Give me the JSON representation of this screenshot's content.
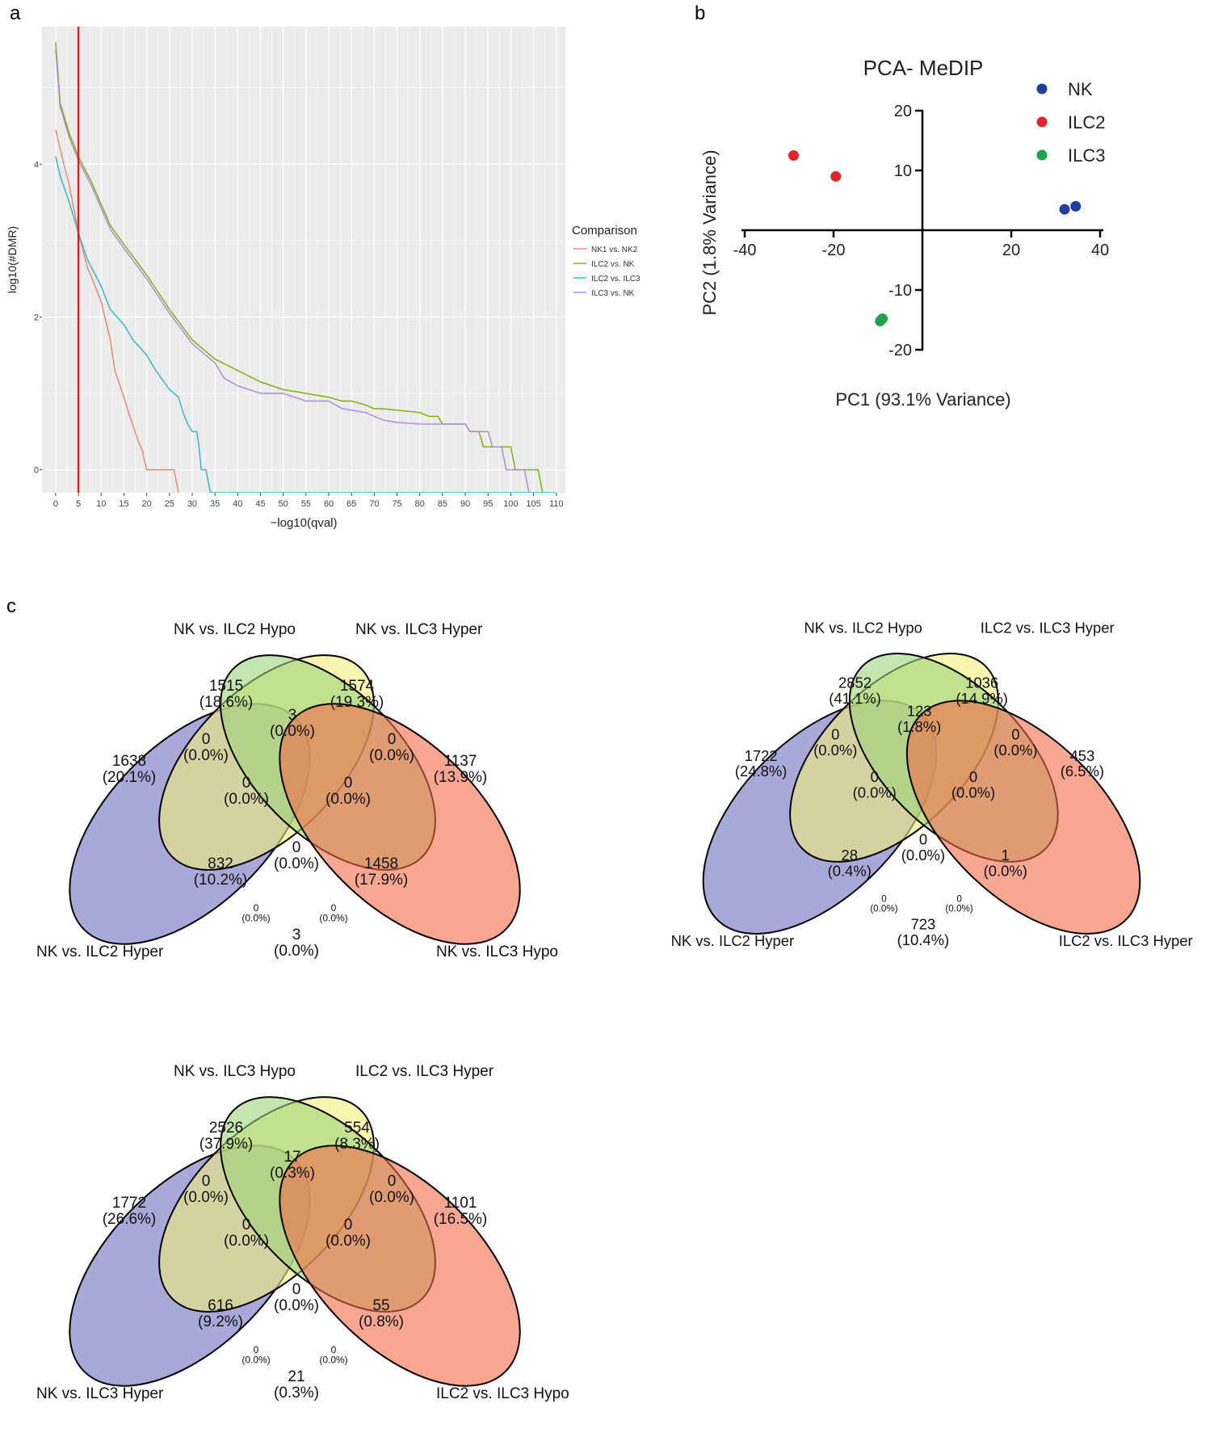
{
  "panel_labels": {
    "a": "a",
    "b": "b",
    "c": "c"
  },
  "chart_data": [
    {
      "type": "line",
      "panel": "a",
      "title": "",
      "xlabel": "−log10(qval)",
      "ylabel": "log10(#DMR)",
      "xlim": [
        -3,
        112
      ],
      "ylim": [
        -0.3,
        5.8
      ],
      "xticks": [
        0,
        5,
        10,
        15,
        20,
        25,
        30,
        35,
        40,
        45,
        50,
        55,
        60,
        65,
        70,
        75,
        80,
        85,
        90,
        95,
        100,
        105,
        110
      ],
      "yticks": [
        0,
        2,
        4
      ],
      "grid": true,
      "background": "#ebebeb",
      "vline": {
        "x": 5,
        "color": "#e41a1c"
      },
      "legend": {
        "title": "Comparison",
        "placement": "right"
      },
      "series": [
        {
          "name": "NK1 vs. NK2",
          "color": "#f08070",
          "points": [
            [
              0,
              4.45
            ],
            [
              1,
              4.2
            ],
            [
              2,
              3.95
            ],
            [
              3,
              3.72
            ],
            [
              5,
              3.1
            ],
            [
              7,
              2.65
            ],
            [
              10,
              2.2
            ],
            [
              12,
              1.7
            ],
            [
              13,
              1.3
            ],
            [
              15,
              0.95
            ],
            [
              16,
              0.75
            ],
            [
              18,
              0.4
            ],
            [
              19,
              0.25
            ],
            [
              20,
              0.0
            ],
            [
              22,
              0.0
            ],
            [
              25,
              0.0
            ],
            [
              26,
              0.0
            ],
            [
              27,
              -0.3
            ]
          ]
        },
        {
          "name": "ILC2 vs. NK",
          "color": "#7cae00",
          "points": [
            [
              0,
              5.6
            ],
            [
              1,
              4.8
            ],
            [
              3,
              4.4
            ],
            [
              5,
              4.1
            ],
            [
              8,
              3.75
            ],
            [
              12,
              3.2
            ],
            [
              15,
              2.95
            ],
            [
              20,
              2.55
            ],
            [
              25,
              2.1
            ],
            [
              30,
              1.7
            ],
            [
              35,
              1.45
            ],
            [
              40,
              1.3
            ],
            [
              45,
              1.15
            ],
            [
              50,
              1.05
            ],
            [
              55,
              1.0
            ],
            [
              60,
              0.95
            ],
            [
              63,
              0.9
            ],
            [
              65,
              0.9
            ],
            [
              68,
              0.85
            ],
            [
              70,
              0.8
            ],
            [
              72,
              0.8
            ],
            [
              75,
              0.78
            ],
            [
              80,
              0.75
            ],
            [
              82,
              0.7
            ],
            [
              84,
              0.7
            ],
            [
              85,
              0.6
            ],
            [
              90,
              0.6
            ],
            [
              91,
              0.5
            ],
            [
              93,
              0.5
            ],
            [
              94,
              0.3
            ],
            [
              100,
              0.3
            ],
            [
              101,
              0.0
            ],
            [
              106,
              0.0
            ],
            [
              107,
              -0.3
            ]
          ]
        },
        {
          "name": "ILC2 vs. ILC3",
          "color": "#26b8c8",
          "points": [
            [
              0,
              4.1
            ],
            [
              1,
              3.85
            ],
            [
              3,
              3.5
            ],
            [
              5,
              3.1
            ],
            [
              7,
              2.75
            ],
            [
              10,
              2.4
            ],
            [
              12,
              2.1
            ],
            [
              15,
              1.9
            ],
            [
              17,
              1.7
            ],
            [
              20,
              1.5
            ],
            [
              22,
              1.3
            ],
            [
              25,
              1.05
            ],
            [
              27,
              0.95
            ],
            [
              28,
              0.75
            ],
            [
              29,
              0.6
            ],
            [
              30,
              0.5
            ],
            [
              31,
              0.5
            ],
            [
              31.5,
              0.3
            ],
            [
              32,
              0.0
            ],
            [
              33,
              0.0
            ],
            [
              34,
              -0.3
            ],
            [
              110,
              -0.3
            ]
          ]
        },
        {
          "name": "ILC3 vs. NK",
          "color": "#a889d4",
          "points": [
            [
              0,
              5.5
            ],
            [
              1,
              4.75
            ],
            [
              3,
              4.35
            ],
            [
              5,
              4.05
            ],
            [
              8,
              3.7
            ],
            [
              12,
              3.15
            ],
            [
              15,
              2.9
            ],
            [
              20,
              2.5
            ],
            [
              25,
              2.05
            ],
            [
              30,
              1.65
            ],
            [
              35,
              1.4
            ],
            [
              36,
              1.3
            ],
            [
              37,
              1.2
            ],
            [
              40,
              1.1
            ],
            [
              45,
              1.0
            ],
            [
              50,
              1.0
            ],
            [
              55,
              0.9
            ],
            [
              60,
              0.9
            ],
            [
              63,
              0.8
            ],
            [
              65,
              0.78
            ],
            [
              68,
              0.75
            ],
            [
              70,
              0.7
            ],
            [
              72,
              0.65
            ],
            [
              75,
              0.62
            ],
            [
              80,
              0.6
            ],
            [
              85,
              0.6
            ],
            [
              90,
              0.6
            ],
            [
              91,
              0.5
            ],
            [
              95,
              0.5
            ],
            [
              96,
              0.3
            ],
            [
              98,
              0.3
            ],
            [
              99,
              0.0
            ],
            [
              103,
              0.0
            ],
            [
              104,
              -0.3
            ]
          ]
        }
      ]
    },
    {
      "type": "scatter",
      "panel": "b",
      "title": "PCA- MeDIP",
      "xlabel": "PC1 (93.1% Variance)",
      "ylabel": "PC2 (1.8% Variance)",
      "xlim": [
        -40,
        40
      ],
      "ylim": [
        -20,
        20
      ],
      "xticks": [
        -40,
        -20,
        20,
        40
      ],
      "yticks": [
        20,
        10,
        -10,
        -20
      ],
      "legend": {
        "placement": "top-right"
      },
      "series": [
        {
          "name": "NK",
          "color": "#1f3f9e",
          "points": [
            [
              32,
              3.5
            ],
            [
              34.5,
              4
            ]
          ]
        },
        {
          "name": "ILC2",
          "color": "#e3242b",
          "points": [
            [
              -29,
              12.5
            ],
            [
              -19.5,
              9
            ]
          ]
        },
        {
          "name": "ILC3",
          "color": "#1fa24a",
          "points": [
            [
              -9.5,
              -15.2
            ],
            [
              -9,
              -14.8
            ]
          ]
        }
      ]
    },
    {
      "type": "venn",
      "panel": "c",
      "sets": [
        "NK vs. ILC2 Hyper",
        "NK vs. ILC2 Hypo",
        "NK vs. ILC3 Hyper",
        "NK vs. ILC3 Hypo"
      ],
      "regions": [
        {
          "sets": [
            "A"
          ],
          "count": "1638",
          "pct": "(20.1%)"
        },
        {
          "sets": [
            "B"
          ],
          "count": "1515",
          "pct": "(18.6%)"
        },
        {
          "sets": [
            "C"
          ],
          "count": "1574",
          "pct": "(19.3%)"
        },
        {
          "sets": [
            "D"
          ],
          "count": "1137",
          "pct": "(13.9%)"
        },
        {
          "sets": [
            "A",
            "B"
          ],
          "count": "0",
          "pct": "(0.0%)"
        },
        {
          "sets": [
            "B",
            "C"
          ],
          "count": "3",
          "pct": "(0.0%)"
        },
        {
          "sets": [
            "C",
            "D"
          ],
          "count": "0",
          "pct": "(0.0%)"
        },
        {
          "sets": [
            "A",
            "B",
            "C"
          ],
          "count": "0",
          "pct": "(0.0%)"
        },
        {
          "sets": [
            "B",
            "C",
            "D"
          ],
          "count": "0",
          "pct": "(0.0%)"
        },
        {
          "sets": [
            "A",
            "B",
            "C",
            "D"
          ],
          "count": "0",
          "pct": "(0.0%)"
        },
        {
          "sets": [
            "A",
            "C"
          ],
          "count": "832",
          "pct": "(10.2%)"
        },
        {
          "sets": [
            "B",
            "D"
          ],
          "count": "1458",
          "pct": "(17.9%)"
        },
        {
          "sets": [
            "A",
            "C",
            "D"
          ],
          "count": "0",
          "pct": "(0.0%)"
        },
        {
          "sets": [
            "A",
            "B",
            "D"
          ],
          "count": "0",
          "pct": "(0.0%)"
        },
        {
          "sets": [
            "A",
            "D"
          ],
          "count": "3",
          "pct": "(0.0%)"
        }
      ]
    },
    {
      "type": "venn",
      "panel": "c",
      "sets": [
        "NK vs. ILC2 Hyper",
        "NK vs. ILC2 Hypo",
        "ILC2 vs. ILC3 Hyper",
        "ILC2 vs. ILC3 Hyper"
      ],
      "regions": [
        {
          "sets": [
            "A"
          ],
          "count": "1722",
          "pct": "(24.8%)"
        },
        {
          "sets": [
            "B"
          ],
          "count": "2852",
          "pct": "(41.1%)"
        },
        {
          "sets": [
            "C"
          ],
          "count": "1036",
          "pct": "(14.9%)"
        },
        {
          "sets": [
            "D"
          ],
          "count": "453",
          "pct": "(6.5%)"
        },
        {
          "sets": [
            "A",
            "B"
          ],
          "count": "0",
          "pct": "(0.0%)"
        },
        {
          "sets": [
            "B",
            "C"
          ],
          "count": "123",
          "pct": "(1.8%)"
        },
        {
          "sets": [
            "C",
            "D"
          ],
          "count": "0",
          "pct": "(0.0%)"
        },
        {
          "sets": [
            "A",
            "B",
            "C"
          ],
          "count": "0",
          "pct": "(0.0%)"
        },
        {
          "sets": [
            "B",
            "C",
            "D"
          ],
          "count": "0",
          "pct": "(0.0%)"
        },
        {
          "sets": [
            "A",
            "B",
            "C",
            "D"
          ],
          "count": "0",
          "pct": "(0.0%)"
        },
        {
          "sets": [
            "A",
            "C"
          ],
          "count": "28",
          "pct": "(0.4%)"
        },
        {
          "sets": [
            "B",
            "D"
          ],
          "count": "1",
          "pct": "(0.0%)"
        },
        {
          "sets": [
            "A",
            "C",
            "D"
          ],
          "count": "0",
          "pct": "(0.0%)"
        },
        {
          "sets": [
            "A",
            "B",
            "D"
          ],
          "count": "0",
          "pct": "(0.0%)"
        },
        {
          "sets": [
            "A",
            "D"
          ],
          "count": "723",
          "pct": "(10.4%)"
        }
      ]
    },
    {
      "type": "venn",
      "panel": "c",
      "sets": [
        "NK vs. ILC3 Hyper",
        "NK vs. ILC3 Hypo",
        "ILC2 vs. ILC3 Hyper",
        "ILC2 vs. ILC3 Hypo"
      ],
      "regions": [
        {
          "sets": [
            "A"
          ],
          "count": "1772",
          "pct": "(26.6%)"
        },
        {
          "sets": [
            "B"
          ],
          "count": "2526",
          "pct": "(37.9%)"
        },
        {
          "sets": [
            "C"
          ],
          "count": "554",
          "pct": "(8.3%)"
        },
        {
          "sets": [
            "D"
          ],
          "count": "1101",
          "pct": "(16.5%)"
        },
        {
          "sets": [
            "A",
            "B"
          ],
          "count": "0",
          "pct": "(0.0%)"
        },
        {
          "sets": [
            "B",
            "C"
          ],
          "count": "17",
          "pct": "(0.3%)"
        },
        {
          "sets": [
            "C",
            "D"
          ],
          "count": "0",
          "pct": "(0.0%)"
        },
        {
          "sets": [
            "A",
            "B",
            "C"
          ],
          "count": "0",
          "pct": "(0.0%)"
        },
        {
          "sets": [
            "B",
            "C",
            "D"
          ],
          "count": "0",
          "pct": "(0.0%)"
        },
        {
          "sets": [
            "A",
            "B",
            "C",
            "D"
          ],
          "count": "0",
          "pct": "(0.0%)"
        },
        {
          "sets": [
            "A",
            "C"
          ],
          "count": "616",
          "pct": "(9.2%)"
        },
        {
          "sets": [
            "B",
            "D"
          ],
          "count": "55",
          "pct": "(0.8%)"
        },
        {
          "sets": [
            "A",
            "C",
            "D"
          ],
          "count": "0",
          "pct": "(0.0%)"
        },
        {
          "sets": [
            "A",
            "B",
            "D"
          ],
          "count": "0",
          "pct": "(0.0%)"
        },
        {
          "sets": [
            "A",
            "D"
          ],
          "count": "21",
          "pct": "(0.3%)"
        }
      ]
    }
  ],
  "venn_colors": [
    "#7070c0",
    "#f2ef7a",
    "#9cd37a",
    "#f26a4a"
  ]
}
